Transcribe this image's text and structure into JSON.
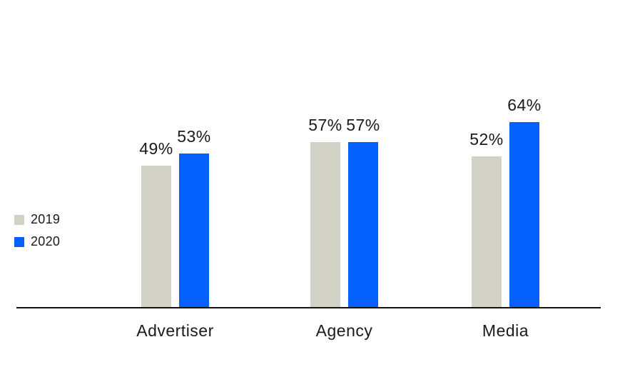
{
  "chart_data": {
    "type": "bar",
    "categories": [
      "Advertiser",
      "Agency",
      "Media"
    ],
    "series": [
      {
        "name": "2019",
        "color": "#d3d2c7",
        "values": [
          49,
          57,
          52
        ]
      },
      {
        "name": "2020",
        "color": "#0561fc",
        "values": [
          53,
          57,
          64
        ]
      }
    ],
    "value_suffix": "%",
    "data_labels": {
      "advertiser_2019": "49%",
      "advertiser_2020": "53%",
      "agency_2019": "57%",
      "agency_2020": "57%",
      "media_2019": "52%",
      "media_2020": "64%"
    },
    "title": "",
    "xlabel": "",
    "ylabel": "",
    "ylim": [
      0,
      79
    ],
    "grid": false,
    "legend_position": "left-middle",
    "axis_color": "#121212",
    "text_color": "#1a1a1a",
    "background_color": "#ffffff"
  },
  "legend": {
    "items": [
      {
        "label": "2019",
        "color": "#d3d2c7"
      },
      {
        "label": "2020",
        "color": "#0561fc"
      }
    ]
  }
}
